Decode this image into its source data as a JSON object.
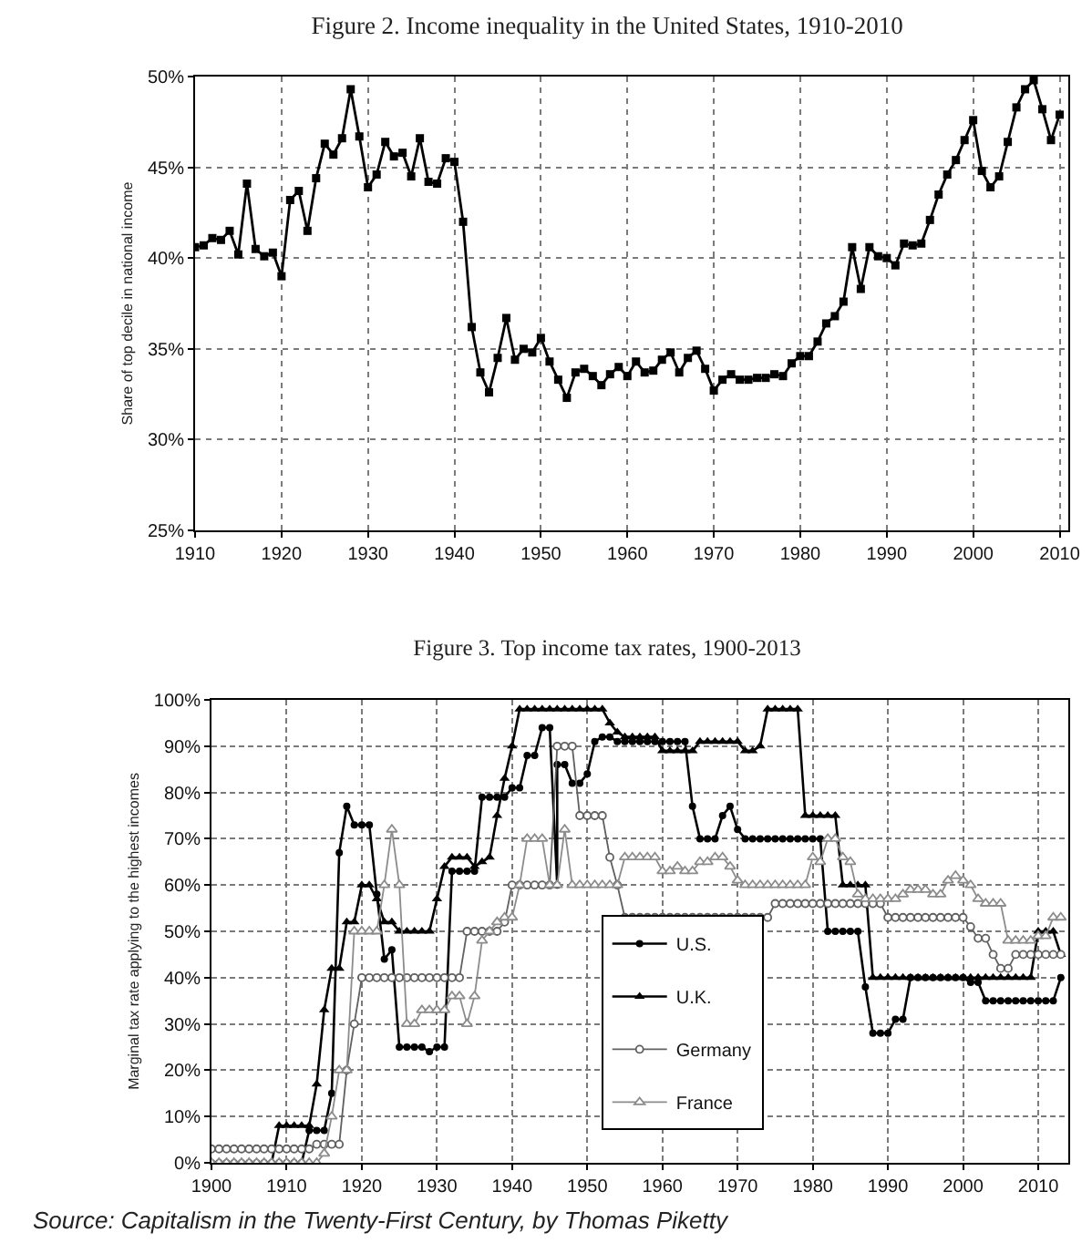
{
  "chart_data": [
    {
      "type": "line",
      "title": "Figure 2. Income inequality in the United States, 1910-2010",
      "ylabel": "Share of top decile in national income",
      "x": [
        1910,
        1911,
        1912,
        1913,
        1914,
        1915,
        1916,
        1917,
        1918,
        1919,
        1920,
        1921,
        1922,
        1923,
        1924,
        1925,
        1926,
        1927,
        1928,
        1929,
        1930,
        1931,
        1932,
        1933,
        1934,
        1935,
        1936,
        1937,
        1938,
        1939,
        1940,
        1941,
        1942,
        1943,
        1944,
        1945,
        1946,
        1947,
        1948,
        1949,
        1950,
        1951,
        1952,
        1953,
        1954,
        1955,
        1956,
        1957,
        1958,
        1959,
        1960,
        1961,
        1962,
        1963,
        1964,
        1965,
        1966,
        1967,
        1968,
        1969,
        1970,
        1971,
        1972,
        1973,
        1974,
        1975,
        1976,
        1977,
        1978,
        1979,
        1980,
        1981,
        1982,
        1983,
        1984,
        1985,
        1986,
        1987,
        1988,
        1989,
        1990,
        1991,
        1992,
        1993,
        1994,
        1995,
        1996,
        1997,
        1998,
        1999,
        2000,
        2001,
        2002,
        2003,
        2004,
        2005,
        2006,
        2007,
        2008,
        2009,
        2010
      ],
      "series": [
        {
          "color": "#000000",
          "values": [
            40.6,
            40.7,
            41.1,
            41.0,
            41.5,
            40.2,
            44.1,
            40.5,
            40.1,
            40.3,
            39.0,
            43.2,
            43.7,
            41.5,
            44.4,
            46.3,
            45.7,
            46.6,
            49.3,
            46.7,
            43.9,
            44.6,
            46.4,
            45.6,
            45.8,
            44.5,
            46.6,
            44.2,
            44.1,
            45.5,
            45.3,
            42.0,
            36.2,
            33.7,
            32.6,
            34.5,
            36.7,
            34.4,
            35.0,
            34.8,
            35.6,
            34.3,
            33.3,
            32.3,
            33.7,
            33.9,
            33.5,
            33.0,
            33.6,
            34.0,
            33.5,
            34.3,
            33.7,
            33.8,
            34.4,
            34.8,
            33.7,
            34.5,
            34.9,
            33.9,
            32.7,
            33.3,
            33.6,
            33.3,
            33.3,
            33.4,
            33.4,
            33.6,
            33.5,
            34.2,
            34.6,
            34.6,
            35.4,
            36.4,
            36.8,
            37.6,
            40.6,
            38.3,
            40.6,
            40.1,
            40.0,
            39.6,
            40.8,
            40.7,
            40.8,
            42.1,
            43.5,
            44.6,
            45.4,
            46.5,
            47.6,
            44.8,
            43.9,
            44.5,
            46.4,
            48.3,
            49.3,
            49.8,
            48.2,
            46.5,
            47.9
          ]
        }
      ],
      "xlim": [
        1910,
        2011
      ],
      "xticks": [
        1910,
        1920,
        1930,
        1940,
        1950,
        1960,
        1970,
        1980,
        1990,
        2000,
        2010
      ],
      "ylim": [
        25,
        50
      ],
      "yticks": [
        {
          "value": 25,
          "label": "25%"
        },
        {
          "value": 30,
          "label": "30%"
        },
        {
          "value": 35,
          "label": "35%"
        },
        {
          "value": 40,
          "label": "40%"
        },
        {
          "value": 45,
          "label": "45%"
        },
        {
          "value": 50,
          "label": "50%"
        }
      ],
      "grid": true,
      "legend": false,
      "marker": "square",
      "line_style": "solid"
    },
    {
      "type": "line",
      "title": "Figure 3. Top income tax rates, 1900-2013",
      "ylabel": "Marginal tax rate applying to the highest incomes",
      "x": [
        1900,
        1901,
        1902,
        1903,
        1904,
        1905,
        1906,
        1907,
        1908,
        1909,
        1910,
        1911,
        1912,
        1913,
        1914,
        1915,
        1916,
        1917,
        1918,
        1919,
        1920,
        1921,
        1922,
        1923,
        1924,
        1925,
        1926,
        1927,
        1928,
        1929,
        1930,
        1931,
        1932,
        1933,
        1934,
        1935,
        1936,
        1937,
        1938,
        1939,
        1940,
        1941,
        1942,
        1943,
        1944,
        1945,
        1946,
        1947,
        1948,
        1949,
        1950,
        1951,
        1952,
        1953,
        1954,
        1955,
        1956,
        1957,
        1958,
        1959,
        1960,
        1961,
        1962,
        1963,
        1964,
        1965,
        1966,
        1967,
        1968,
        1969,
        1970,
        1971,
        1972,
        1973,
        1974,
        1975,
        1976,
        1977,
        1978,
        1979,
        1980,
        1981,
        1982,
        1983,
        1984,
        1985,
        1986,
        1987,
        1988,
        1989,
        1990,
        1991,
        1992,
        1993,
        1994,
        1995,
        1996,
        1997,
        1998,
        1999,
        2000,
        2001,
        2002,
        2003,
        2004,
        2005,
        2006,
        2007,
        2008,
        2009,
        2010,
        2011,
        2012,
        2013
      ],
      "series": [
        {
          "name": "U.S.",
          "color": "#000000",
          "marker": "circle",
          "x": [
            1900,
            1901,
            1902,
            1903,
            1904,
            1905,
            1906,
            1907,
            1908,
            1909,
            1910,
            1911,
            1912,
            1913,
            1914,
            1915,
            1916,
            1917,
            1918,
            1919,
            1920,
            1921,
            1922,
            1923,
            1924,
            1925,
            1926,
            1927,
            1928,
            1929,
            1930,
            1931,
            1932,
            1933,
            1934,
            1935,
            1936,
            1937,
            1938,
            1939,
            1940,
            1941,
            1942,
            1943,
            1944,
            1945,
            1946,
            1946,
            1947,
            1948,
            1949,
            1950,
            1951,
            1952,
            1953,
            1954,
            1955,
            1956,
            1957,
            1958,
            1959,
            1960,
            1961,
            1962,
            1963,
            1964,
            1965,
            1966,
            1967,
            1968,
            1969,
            1970,
            1971,
            1972,
            1973,
            1974,
            1975,
            1976,
            1977,
            1978,
            1979,
            1980,
            1981,
            1982,
            1983,
            1984,
            1985,
            1986,
            1987,
            1988,
            1989,
            1990,
            1991,
            1992,
            1993,
            1994,
            1995,
            1996,
            1997,
            1998,
            1999,
            2000,
            2001,
            2002,
            2003,
            2004,
            2005,
            2006,
            2007,
            2008,
            2009,
            2010,
            2011,
            2012,
            2013
          ],
          "values": [
            0,
            0,
            0,
            0,
            0,
            0,
            0,
            0,
            0,
            0,
            0,
            0,
            0,
            7,
            7,
            7,
            15,
            67,
            77,
            73,
            73,
            73,
            58,
            44,
            46,
            25,
            25,
            25,
            25,
            24,
            25,
            25,
            63,
            63,
            63,
            63,
            79,
            79,
            79,
            79,
            81,
            81,
            88,
            88,
            94,
            94,
            60,
            86,
            86,
            82,
            82,
            84,
            91,
            92,
            92,
            91,
            91,
            91,
            91,
            91,
            91,
            91,
            91,
            91,
            91,
            77,
            70,
            70,
            70,
            75,
            77,
            72,
            70,
            70,
            70,
            70,
            70,
            70,
            70,
            70,
            70,
            70,
            70,
            50,
            50,
            50,
            50,
            50,
            38,
            28,
            28,
            28,
            31,
            31,
            40,
            40,
            40,
            40,
            40,
            40,
            40,
            40,
            39,
            39,
            35,
            35,
            35,
            35,
            35,
            35,
            35,
            35,
            35,
            35,
            40
          ]
        },
        {
          "name": "U.K.",
          "color": "#000000",
          "marker": "triangle",
          "values": [
            0,
            0,
            0,
            0,
            0,
            0,
            0,
            0,
            0,
            8,
            8,
            8,
            8,
            8,
            17,
            33,
            42,
            42,
            52,
            52,
            60,
            60,
            57,
            52,
            52,
            50,
            50,
            50,
            50,
            50,
            57,
            64,
            66,
            66,
            66,
            64,
            65,
            66,
            75,
            83,
            90,
            98,
            98,
            98,
            98,
            98,
            98,
            98,
            98,
            98,
            98,
            98,
            98,
            95,
            93,
            92,
            92,
            92,
            92,
            92,
            89,
            89,
            89,
            89,
            89,
            91,
            91,
            91,
            91,
            91,
            91,
            89,
            89,
            90,
            98,
            98,
            98,
            98,
            98,
            75,
            75,
            75,
            75,
            75,
            60,
            60,
            60,
            60,
            40,
            40,
            40,
            40,
            40,
            40,
            40,
            40,
            40,
            40,
            40,
            40,
            40,
            40,
            40,
            40,
            40,
            40,
            40,
            40,
            40,
            40,
            50,
            50,
            50,
            45
          ]
        },
        {
          "name": "Germany",
          "color": "#606060",
          "marker": "circle-open",
          "values": [
            3,
            3,
            3,
            3,
            3,
            3,
            3,
            3,
            3,
            3,
            3,
            3,
            3,
            3,
            4,
            4,
            4,
            4,
            20,
            30,
            40,
            40,
            40,
            40,
            40,
            40,
            40,
            40,
            40,
            40,
            40,
            40,
            40,
            40,
            50,
            50,
            50,
            50,
            50,
            52,
            60,
            60,
            60,
            60,
            60,
            60,
            90,
            90,
            90,
            75,
            75,
            75,
            75,
            66,
            60,
            53,
            53,
            53,
            53,
            53,
            53,
            53,
            53,
            53,
            53,
            53,
            53,
            53,
            53,
            53,
            53,
            53,
            53,
            53,
            53,
            56,
            56,
            56,
            56,
            56,
            56,
            56,
            56,
            56,
            56,
            56,
            56,
            56,
            56,
            56,
            53,
            53,
            53,
            53,
            53,
            53,
            53,
            53,
            53,
            53,
            53,
            51,
            48.5,
            48.5,
            45,
            42,
            42,
            45,
            45,
            45,
            45,
            45,
            45,
            45
          ]
        },
        {
          "name": "France",
          "color": "#8c8c8c",
          "marker": "triangle-open",
          "values": [
            0,
            0,
            0,
            0,
            0,
            0,
            0,
            0,
            0,
            0,
            0,
            0,
            0,
            0,
            0,
            2,
            10,
            20,
            20,
            50,
            50,
            50,
            50,
            60,
            72,
            60,
            30,
            30,
            33,
            33,
            33,
            33,
            36,
            36,
            30,
            36,
            48,
            50,
            52,
            53,
            53,
            60,
            70,
            70,
            70,
            60,
            60,
            72,
            60,
            60,
            60,
            60,
            60,
            60,
            60,
            66,
            66,
            66,
            66,
            66,
            63,
            63,
            64,
            63,
            63,
            65,
            65,
            66,
            66,
            64,
            61,
            60,
            60,
            60,
            60,
            60,
            60,
            60,
            60,
            60,
            66,
            65,
            70,
            70,
            66,
            65,
            58,
            57,
            57,
            57,
            57,
            57,
            58,
            59,
            59,
            59,
            58,
            58,
            61,
            62,
            61,
            60,
            57,
            56,
            56,
            56,
            48,
            48,
            48,
            48,
            49,
            49,
            53,
            53
          ]
        }
      ],
      "xlim": [
        1900,
        2014
      ],
      "xticks": [
        1900,
        1910,
        1920,
        1930,
        1940,
        1950,
        1960,
        1970,
        1980,
        1990,
        2000,
        2010
      ],
      "ylim": [
        0,
        100
      ],
      "yticks": [
        {
          "value": 0,
          "label": "0%"
        },
        {
          "value": 10,
          "label": "10%"
        },
        {
          "value": 20,
          "label": "20%"
        },
        {
          "value": 30,
          "label": "30%"
        },
        {
          "value": 40,
          "label": "40%"
        },
        {
          "value": 50,
          "label": "50%"
        },
        {
          "value": 60,
          "label": "60%"
        },
        {
          "value": 70,
          "label": "70%"
        },
        {
          "value": 80,
          "label": "80%"
        },
        {
          "value": 90,
          "label": "90%"
        },
        {
          "value": 100,
          "label": "100%"
        }
      ],
      "grid": true,
      "legend": "bottom",
      "line_style": "solid",
      "annotations": [
        "Source: Capitalism in the Twenty-First Century, by Thomas Piketty"
      ]
    }
  ]
}
